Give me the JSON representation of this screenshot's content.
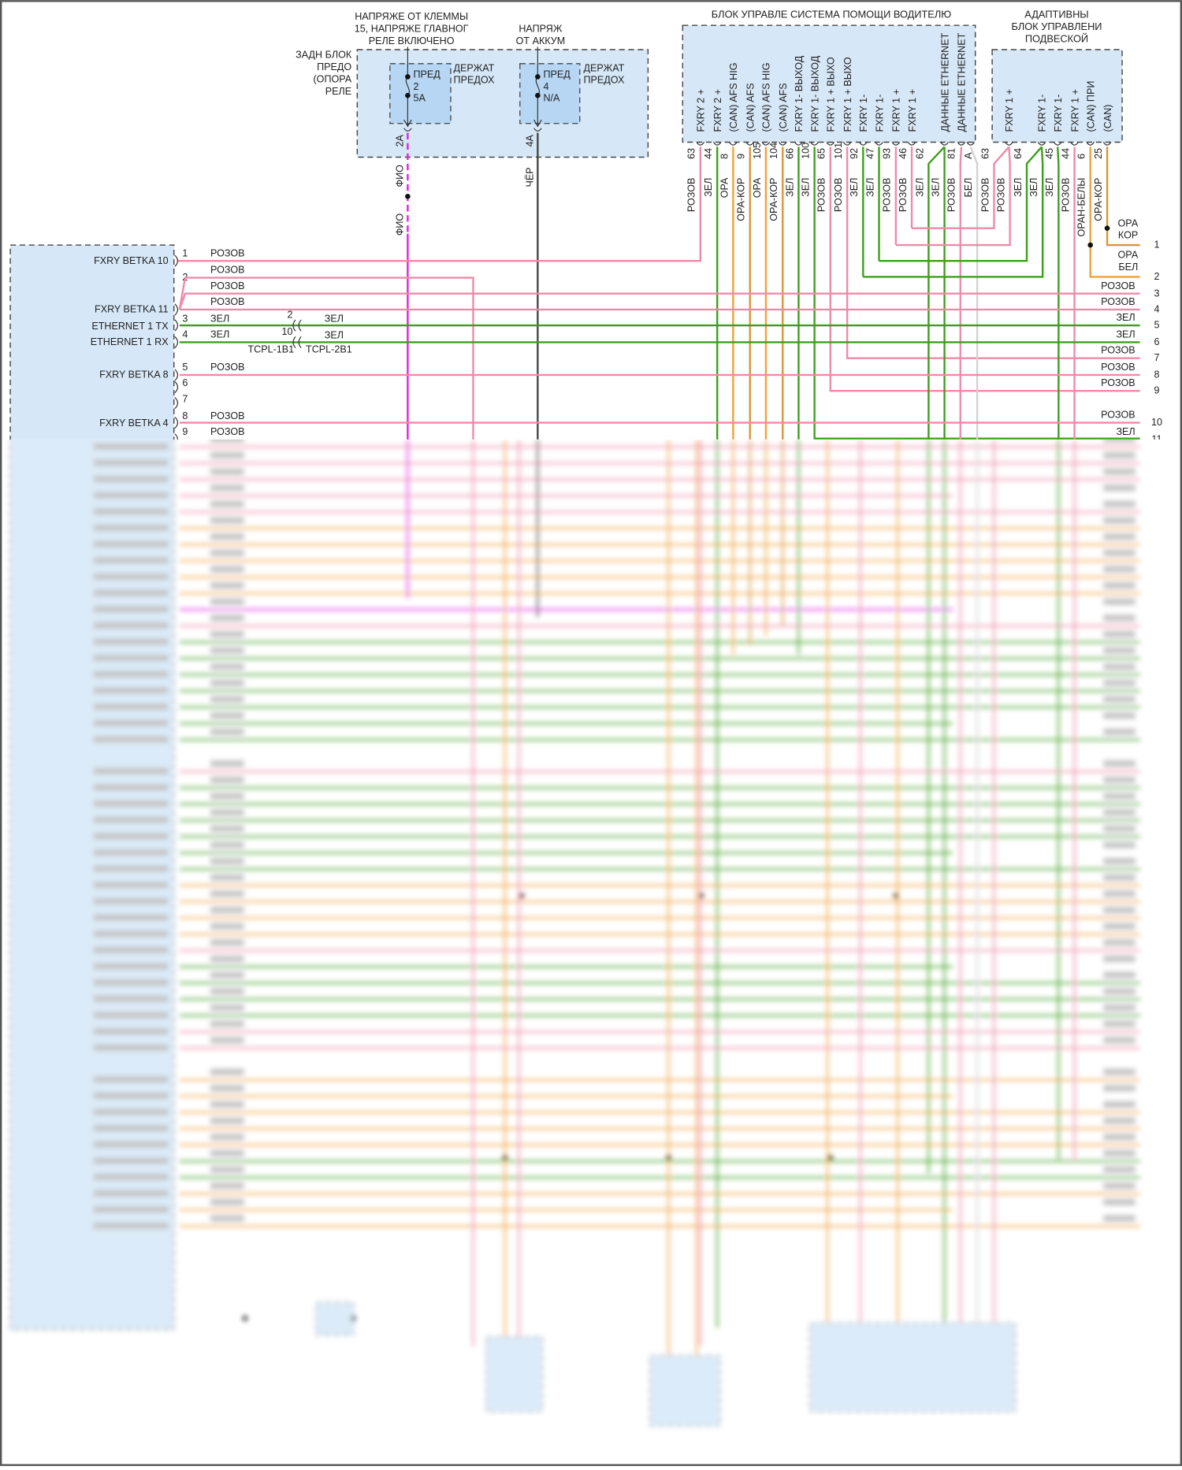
{
  "colors": {
    "pink": "#ee8aa8",
    "green": "#3d9e1c",
    "orange": "#f0a03c",
    "orange_brown": "#d8953a",
    "magenta": "#e01ee0",
    "white_wire": "#d2d2d2",
    "black_wire": "#444444",
    "module_fill": "#d6e8f8",
    "holder_fill": "#b6d6f4"
  },
  "fuse_block": {
    "label": [
      "ЗАДН БЛОК",
      "ПРЕДО",
      "(ОПОРА",
      "РЕЛЕ"
    ],
    "feeds": [
      {
        "label": [
          "НАПРЯЖЕ ОТ КЛЕММЫ",
          "15, НАПРЯЖЕ ГЛАВНОГ",
          "РЕЛЕ ВКЛЮЧЕНО"
        ],
        "fuse": {
          "name": "ПРЕД",
          "number": "2",
          "rating": "5А"
        },
        "holder": [
          "ДЕРЖАТ",
          "ПРЕДОХ"
        ],
        "pin": "2А",
        "wire": [
          "ФИО",
          "ФИО"
        ]
      },
      {
        "label": [
          "НАПРЯЖ",
          "ОТ АККУМ"
        ],
        "fuse": {
          "name": "ПРЕД",
          "number": "4",
          "rating": "N/A"
        },
        "holder": [
          "ДЕРЖАТ",
          "ПРЕДОХ"
        ],
        "pin": "4А",
        "wire": [
          "ЧЁР"
        ]
      }
    ]
  },
  "assist_ecu": {
    "title": "БЛОК УПРАВЛЕ СИСТЕМА ПОМОЩИ ВОДИТЕЛЮ",
    "pins": [
      {
        "label": "FXRY 2 +",
        "pin": "63",
        "wire": "РОЗОВ",
        "color": "pink"
      },
      {
        "label": "FXRY 2 +",
        "pin": "44",
        "wire": "ЗЕЛ",
        "color": "green"
      },
      {
        "label": "(CAN) AFS HIG",
        "pin": "8",
        "wire": "ОРА",
        "color": "orange"
      },
      {
        "label": "(CAN) AFS",
        "pin": "9",
        "wire": "ОРА-КОР",
        "color": "orange_brown"
      },
      {
        "label": "(CAN) AFS HIG",
        "pin": "105",
        "wire": "ОРА",
        "color": "orange"
      },
      {
        "label": "(CAN) AFS",
        "pin": "104",
        "wire": "ОРА-КОР",
        "color": "orange_brown"
      },
      {
        "label": "FXRY 1- ВЫХОД",
        "pin": "66",
        "wire": "ЗЕЛ",
        "color": "green"
      },
      {
        "label": "FXRY 1- ВЫХОД",
        "pin": "100",
        "wire": "ЗЕЛ",
        "color": "green"
      },
      {
        "label": "FXRY 1 + ВЫХО",
        "pin": "65",
        "wire": "РОЗОВ",
        "color": "pink"
      },
      {
        "label": "FXRY 1 + ВЫХО",
        "pin": "101",
        "wire": "РОЗОВ",
        "color": "pink"
      },
      {
        "label": "FXRY 1-",
        "pin": "92",
        "wire": "ЗЕЛ",
        "color": "green"
      },
      {
        "label": "FXRY 1-",
        "pin": "47",
        "wire": "ЗЕЛ",
        "color": "green"
      },
      {
        "label": "FXRY 1 +",
        "pin": "93",
        "wire": "РОЗОВ",
        "color": "pink"
      },
      {
        "label": "FXRY 1 +",
        "pin": "46",
        "wire": "РОЗОВ",
        "color": "pink"
      },
      {
        "label": "ДАННЫЕ ETHERNET",
        "pin": "62",
        "wire": "ЗЕЛ",
        "color": "green"
      },
      {
        "label": "",
        "pin": "",
        "wire": "ЗЕЛ",
        "color": "green"
      },
      {
        "label": "ДАННЫЕ ETHERNET",
        "pin": "81",
        "wire": "РОЗОВ",
        "color": "pink"
      },
      {
        "label": "",
        "pin": "A",
        "wire": "БЕЛ",
        "color": "white_wire"
      }
    ]
  },
  "adaptive_ecu": {
    "title": [
      "АДАПТИВНЫ",
      "БЛОК УПРАВЛЕНИ",
      "ПОДВЕСКОЙ"
    ],
    "pins": [
      {
        "label": "FXRY 1 +",
        "pin": "63",
        "wire": "РОЗОВ",
        "color": "pink"
      },
      {
        "label": "",
        "pin": "",
        "wire": "РОЗОВ",
        "color": "pink"
      },
      {
        "label": "FXRY 1-",
        "pin": "64",
        "wire": "ЗЕЛ",
        "color": "green"
      },
      {
        "label": "",
        "pin": "",
        "wire": "ЗЕЛ",
        "color": "green"
      },
      {
        "label": "FXRY 1-",
        "pin": "45",
        "wire": "ЗЕЛ",
        "color": "green"
      },
      {
        "label": "FXRY 1 +",
        "pin": "44",
        "wire": "РОЗОВ",
        "color": "pink"
      },
      {
        "label": "(CAN) ПРИ",
        "pin": "6",
        "wire": "ОРАН-БЕЛЫ",
        "color": "orange"
      },
      {
        "label": "(CAN)",
        "pin": "25",
        "wire": "ОРА-КОР",
        "color": "orange_brown"
      }
    ]
  },
  "left_module": {
    "pins": [
      {
        "label": "FXRY BETKA 10",
        "pin": "1",
        "wires": [
          "РОЗОВ"
        ]
      },
      {
        "label": "FXRY BETKA 11",
        "pin": "2",
        "wires": [
          "РОЗОВ",
          "РОЗОВ",
          "РОЗОВ"
        ]
      },
      {
        "label": "ETHERNET 1 TX",
        "pin": "3",
        "wires": [
          "ЗЕЛ"
        ]
      },
      {
        "label": "ETHERNET 1 RX",
        "pin": "4",
        "wires": [
          "ЗЕЛ"
        ]
      },
      {
        "label": "FXRY BETKA 8",
        "pin": "5",
        "wires": [
          "РОЗОВ"
        ]
      },
      {
        "label": "",
        "pin": "6",
        "wires": []
      },
      {
        "label": "",
        "pin": "7",
        "wires": []
      },
      {
        "label": "FXRY BETKA 4",
        "pin": "8",
        "wires": [
          "РОЗОВ"
        ]
      },
      {
        "label": "",
        "pin": "9",
        "wires": [
          "РОЗОВ"
        ]
      }
    ]
  },
  "inline_connector": {
    "left": "TCPL-1B1",
    "right": "TCPL-2B1",
    "rows": [
      {
        "pin": "2",
        "wire": "ЗЕЛ"
      },
      {
        "pin": "10",
        "wire": "ЗЕЛ"
      }
    ]
  },
  "right_rows": [
    {
      "num": "1",
      "wire": [
        "ОРА",
        "КОР"
      ]
    },
    {
      "num": "2",
      "wire": [
        "ОРА",
        "БЕЛ"
      ]
    },
    {
      "num": "3",
      "wire": [
        "РОЗОВ"
      ]
    },
    {
      "num": "4",
      "wire": [
        "РОЗОВ"
      ]
    },
    {
      "num": "5",
      "wire": [
        "ЗЕЛ"
      ]
    },
    {
      "num": "6",
      "wire": [
        "ЗЕЛ"
      ]
    },
    {
      "num": "7",
      "wire": [
        "РОЗОВ"
      ]
    },
    {
      "num": "8",
      "wire": [
        "РОЗОВ"
      ]
    },
    {
      "num": "9",
      "wire": [
        "РОЗОВ"
      ]
    },
    {
      "num": "10",
      "wire": [
        "РОЗОВ"
      ]
    },
    {
      "num": "11",
      "wire": [
        "ЗЕЛ"
      ]
    }
  ]
}
